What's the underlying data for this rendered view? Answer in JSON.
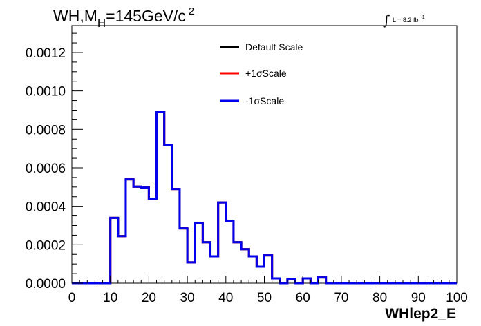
{
  "chart_data": {
    "type": "line",
    "title_parts": {
      "prefix": "WH,M",
      "subscript": "H",
      "rest": "=145GeV/c",
      "superscript": "2"
    },
    "lumi_text": "L = 8.2 fb",
    "lumi_superscript": "-1",
    "lumi_integral_symbol": "∫",
    "xlabel": "WHlep2_E",
    "ylabel": "",
    "xlim": [
      0,
      100
    ],
    "ylim": [
      0,
      0.00134
    ],
    "x_ticks": [
      0,
      10,
      20,
      30,
      40,
      50,
      60,
      70,
      80,
      90,
      100
    ],
    "x_tick_labels": [
      "0",
      "10",
      "20",
      "30",
      "40",
      "50",
      "60",
      "70",
      "80",
      "90",
      "100"
    ],
    "y_ticks": [
      0,
      0.0002,
      0.0004,
      0.0006,
      0.0008,
      0.001,
      0.0012
    ],
    "y_tick_labels": [
      "0.0000",
      "0.0002",
      "0.0004",
      "0.0006",
      "0.0008",
      "0.0010",
      "0.0012"
    ],
    "legend_position": "top-center",
    "bin_edges": [
      0,
      2,
      4,
      6,
      8,
      10,
      12,
      14,
      16,
      18,
      20,
      22,
      24,
      26,
      28,
      30,
      32,
      34,
      36,
      38,
      40,
      42,
      44,
      46,
      48,
      50,
      52,
      54,
      56,
      58,
      60,
      62,
      64,
      66,
      68,
      70,
      72,
      74,
      76,
      78,
      80,
      82,
      84,
      86,
      88,
      90,
      92,
      94,
      96,
      98,
      100
    ],
    "series": [
      {
        "name": "Default Scale",
        "color": "#000000",
        "values": [
          0,
          0,
          0,
          0,
          0,
          0.00034,
          0.000245,
          0.00054,
          0.000502,
          0.000497,
          0.00044,
          0.00089,
          0.00072,
          0.00049,
          0.000285,
          0.000108,
          0.000313,
          0.000213,
          0.00014,
          0.00042,
          0.000325,
          0.000213,
          0.000177,
          0.00014,
          8.6e-05,
          0.000145,
          2.5e-05,
          0,
          2.3e-05,
          0,
          2.5e-05,
          0,
          3e-05,
          0,
          0,
          0,
          0,
          0,
          0,
          0,
          0,
          0,
          0,
          0,
          0,
          0,
          0,
          0,
          0,
          0
        ]
      },
      {
        "name": "+1σScale",
        "color": "#ff0000",
        "values": [
          0,
          0,
          0,
          0,
          0,
          0.00034,
          0.000245,
          0.00054,
          0.000502,
          0.000497,
          0.00044,
          0.00089,
          0.00072,
          0.00049,
          0.000285,
          0.000108,
          0.000313,
          0.000213,
          0.00014,
          0.00042,
          0.000325,
          0.000213,
          0.000177,
          0.00014,
          8.6e-05,
          0.000145,
          2.5e-05,
          0,
          2.3e-05,
          0,
          2.5e-05,
          0,
          3e-05,
          0,
          0,
          0,
          0,
          0,
          0,
          0,
          0,
          0,
          0,
          0,
          0,
          0,
          0,
          0,
          0,
          0
        ]
      },
      {
        "name": "-1σScale",
        "color": "#0000ee",
        "values": [
          0,
          0,
          0,
          0,
          0,
          0.00034,
          0.000245,
          0.00054,
          0.000502,
          0.000497,
          0.00044,
          0.00089,
          0.00072,
          0.00049,
          0.000285,
          0.000108,
          0.000313,
          0.000213,
          0.00014,
          0.00042,
          0.000325,
          0.000213,
          0.000177,
          0.00014,
          8.6e-05,
          0.000145,
          2.5e-05,
          0,
          2.3e-05,
          0,
          2.5e-05,
          0,
          3e-05,
          0,
          0,
          0,
          0,
          0,
          0,
          0,
          0,
          0,
          0,
          0,
          0,
          0,
          0,
          0,
          0,
          0
        ]
      }
    ]
  }
}
